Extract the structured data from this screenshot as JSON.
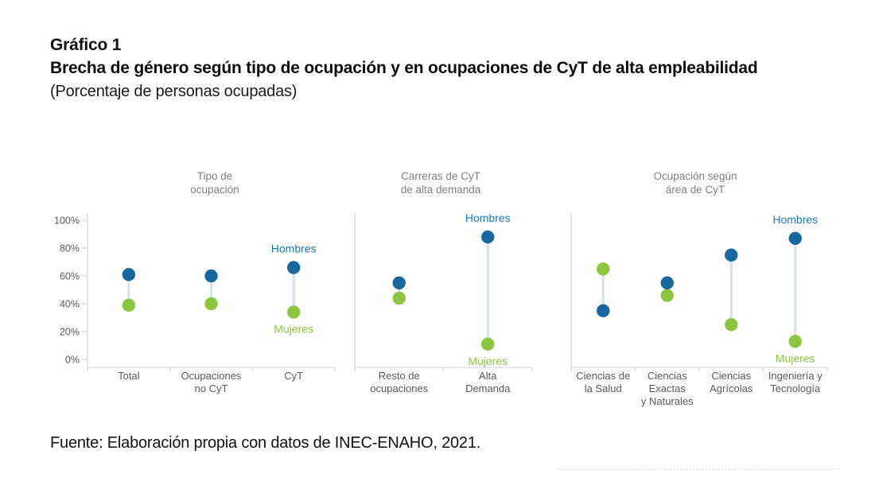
{
  "header": {
    "figure_label": "Gráfico 1",
    "title": "Brecha de género según tipo de ocupación y en ocupaciones de CyT de alta empleabilidad",
    "subtitle": "(Porcentaje de personas ocupadas)"
  },
  "footer": {
    "source": "Fuente: Elaboración propia con datos de INEC-ENAHO, 2021."
  },
  "series_labels": {
    "hombres": "Hombres",
    "mujeres": "Mujeres"
  },
  "colors": {
    "hombres_dot": "#16689F",
    "mujeres_dot": "#8CC63F",
    "hombres_label": "#1878BE",
    "mujeres_label": "#8CC63F",
    "axis_line": "#D5DBE2",
    "stem_line": "#DCE4EB",
    "axis_text": "#595959",
    "panel_title_text": "#7F7F7F"
  },
  "chart_data": [
    {
      "type": "scatter",
      "variant": "dumbbell-dot-plot",
      "title": "Tipo de ocupación",
      "title_lines": [
        "Tipo de",
        "ocupación"
      ],
      "categories": [
        "Total",
        "Ocupaciones no CyT",
        "CyT"
      ],
      "category_label_lines": [
        [
          "Total"
        ],
        [
          "Ocupaciones",
          "no CyT"
        ],
        [
          "CyT"
        ]
      ],
      "series": [
        {
          "name": "Hombres",
          "values": [
            61,
            60,
            66
          ]
        },
        {
          "name": "Mujeres",
          "values": [
            39,
            40,
            34
          ]
        }
      ],
      "ylim": [
        0,
        100
      ],
      "yticks": [
        "0%",
        "20%",
        "40%",
        "60%",
        "80%",
        "100%"
      ],
      "show_y_axis": true,
      "annotated_category": "CyT"
    },
    {
      "type": "scatter",
      "variant": "dumbbell-dot-plot",
      "title": "Carreras de CyT de alta demanda",
      "title_lines": [
        "Carreras de CyT",
        "de alta demanda"
      ],
      "categories": [
        "Resto de ocupaciones",
        "Alta Demanda"
      ],
      "category_label_lines": [
        [
          "Resto de",
          "ocupaciones"
        ],
        [
          "Alta",
          "Demanda"
        ]
      ],
      "series": [
        {
          "name": "Hombres",
          "values": [
            55,
            88
          ]
        },
        {
          "name": "Mujeres",
          "values": [
            44,
            11
          ]
        }
      ],
      "ylim": [
        0,
        100
      ],
      "yticks": [],
      "show_y_axis": false,
      "annotated_category": "Alta Demanda"
    },
    {
      "type": "scatter",
      "variant": "dumbbell-dot-plot",
      "title": "Ocupación según área de CyT",
      "title_lines": [
        "Ocupación según",
        "área de CyT"
      ],
      "categories": [
        "Ciencias de la Salud",
        "Ciencias Exactas y Naturales",
        "Ciencias Agrícolas",
        "Ingeniería y Tecnología"
      ],
      "category_label_lines": [
        [
          "Ciencias de",
          "la Salud"
        ],
        [
          "Ciencias",
          "Exactas",
          "y Naturales"
        ],
        [
          "Ciencias",
          "Agrícolas"
        ],
        [
          "Ingeniería y",
          "Tecnología"
        ]
      ],
      "series": [
        {
          "name": "Hombres",
          "values": [
            35,
            55,
            75,
            87
          ]
        },
        {
          "name": "Mujeres",
          "values": [
            65,
            46,
            25,
            13
          ]
        }
      ],
      "ylim": [
        0,
        100
      ],
      "yticks": [],
      "show_y_axis": false,
      "annotated_category": "Ingeniería y Tecnología"
    }
  ]
}
